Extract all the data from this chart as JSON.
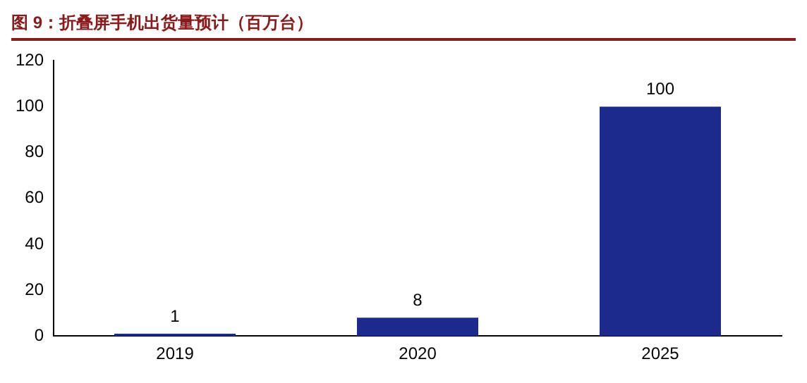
{
  "chart_data": {
    "type": "bar",
    "title": "图 9：折叠屏手机出货量预计（百万台）",
    "categories": [
      "2019",
      "2020",
      "2025"
    ],
    "values": [
      1,
      8,
      100
    ],
    "color": "#1b2a8c",
    "ylim": [
      0,
      120
    ],
    "yticks": [
      0,
      20,
      40,
      60,
      80,
      100,
      120
    ],
    "grid": false,
    "legend": false,
    "data_labels": true
  }
}
